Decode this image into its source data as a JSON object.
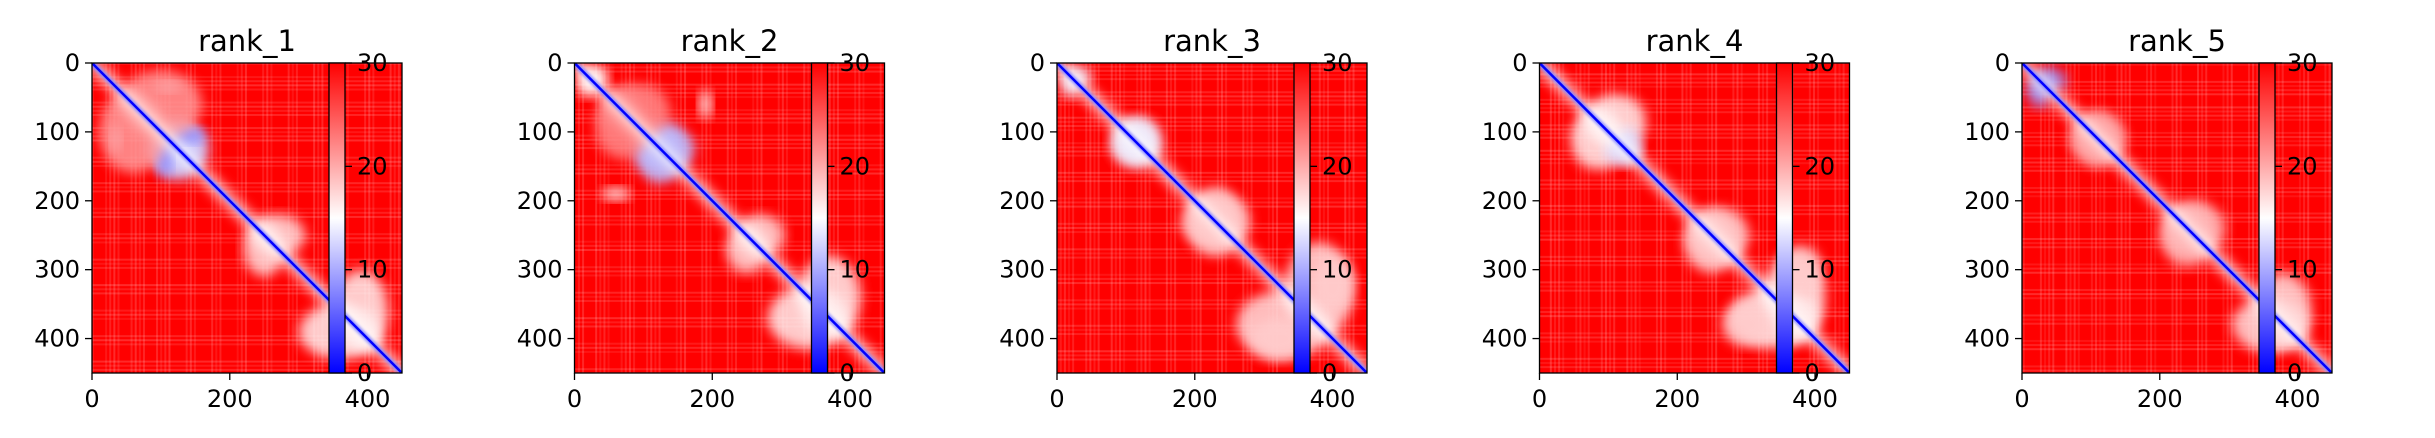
{
  "chart_data": [
    {
      "type": "heatmap",
      "title": "rank_1",
      "x_ticks": [
        "0",
        "200",
        "400"
      ],
      "y_ticks": [
        "0",
        "100",
        "200",
        "300",
        "400"
      ],
      "colorbar_ticks": [
        "0",
        "10",
        "20",
        "30"
      ],
      "xlim": [
        0,
        450
      ],
      "ylim": [
        450,
        0
      ],
      "clim": [
        0,
        30
      ],
      "colormap": [
        "#0000ff",
        "#ffffff",
        "#ff0000"
      ],
      "blobs": [
        {
          "x": 125,
          "y": 125,
          "rx": 45,
          "ry": 35,
          "value": 12
        },
        {
          "x": 140,
          "y": 105,
          "rx": 25,
          "ry": 12,
          "value": 8
        },
        {
          "x": 35,
          "y": 110,
          "rx": 8,
          "ry": 20,
          "value": 14
        },
        {
          "x": 270,
          "y": 250,
          "rx": 40,
          "ry": 30,
          "value": 17
        },
        {
          "x": 360,
          "y": 390,
          "rx": 60,
          "ry": 40,
          "value": 16
        },
        {
          "x": 100,
          "y": 60,
          "rx": 60,
          "ry": 50,
          "value": 21
        }
      ]
    },
    {
      "type": "heatmap",
      "title": "rank_2",
      "x_ticks": [
        "0",
        "200",
        "400"
      ],
      "y_ticks": [
        "0",
        "100",
        "200",
        "300",
        "400"
      ],
      "colorbar_ticks": [
        "0",
        "10",
        "20",
        "30"
      ],
      "xlim": [
        0,
        450
      ],
      "ylim": [
        450,
        0
      ],
      "clim": [
        0,
        30
      ],
      "colormap": [
        "#0000ff",
        "#ffffff",
        "#ff0000"
      ],
      "blobs": [
        {
          "x": 130,
          "y": 125,
          "rx": 45,
          "ry": 35,
          "value": 11
        },
        {
          "x": 30,
          "y": 20,
          "rx": 20,
          "ry": 15,
          "value": 15
        },
        {
          "x": 60,
          "y": 190,
          "rx": 20,
          "ry": 10,
          "value": 16
        },
        {
          "x": 270,
          "y": 250,
          "rx": 35,
          "ry": 30,
          "value": 17
        },
        {
          "x": 340,
          "y": 370,
          "rx": 60,
          "ry": 45,
          "value": 16
        },
        {
          "x": 90,
          "y": 70,
          "rx": 50,
          "ry": 40,
          "value": 22
        }
      ]
    },
    {
      "type": "heatmap",
      "title": "rank_3",
      "x_ticks": [
        "0",
        "200",
        "400"
      ],
      "y_ticks": [
        "0",
        "100",
        "200",
        "300",
        "400"
      ],
      "colorbar_ticks": [
        "0",
        "10",
        "20",
        "30"
      ],
      "xlim": [
        0,
        450
      ],
      "ylim": [
        450,
        0
      ],
      "clim": [
        0,
        30
      ],
      "colormap": [
        "#0000ff",
        "#ffffff",
        "#ff0000"
      ],
      "blobs": [
        {
          "x": 115,
          "y": 115,
          "rx": 35,
          "ry": 35,
          "value": 14
        },
        {
          "x": 30,
          "y": 20,
          "rx": 20,
          "ry": 15,
          "value": 14
        },
        {
          "x": 230,
          "y": 230,
          "rx": 50,
          "ry": 40,
          "value": 18
        },
        {
          "x": 330,
          "y": 380,
          "rx": 70,
          "ry": 50,
          "value": 17
        },
        {
          "x": 400,
          "y": 320,
          "rx": 30,
          "ry": 40,
          "value": 18
        }
      ]
    },
    {
      "type": "heatmap",
      "title": "rank_4",
      "x_ticks": [
        "0",
        "200",
        "400"
      ],
      "y_ticks": [
        "0",
        "100",
        "200",
        "300",
        "400"
      ],
      "colorbar_ticks": [
        "0",
        "10",
        "20",
        "30"
      ],
      "xlim": [
        0,
        450
      ],
      "ylim": [
        450,
        0
      ],
      "clim": [
        0,
        30
      ],
      "colormap": [
        "#0000ff",
        "#ffffff",
        "#ff0000"
      ],
      "blobs": [
        {
          "x": 85,
          "y": 110,
          "rx": 40,
          "ry": 45,
          "value": 16
        },
        {
          "x": 120,
          "y": 130,
          "rx": 25,
          "ry": 20,
          "value": 13
        },
        {
          "x": 260,
          "y": 250,
          "rx": 45,
          "ry": 40,
          "value": 18
        },
        {
          "x": 340,
          "y": 370,
          "rx": 65,
          "ry": 45,
          "value": 16
        },
        {
          "x": 380,
          "y": 300,
          "rx": 30,
          "ry": 35,
          "value": 18
        }
      ]
    },
    {
      "type": "heatmap",
      "title": "rank_5",
      "x_ticks": [
        "0",
        "200",
        "400"
      ],
      "y_ticks": [
        "0",
        "100",
        "200",
        "300",
        "400"
      ],
      "colorbar_ticks": [
        "0",
        "10",
        "20",
        "30"
      ],
      "xlim": [
        0,
        450
      ],
      "ylim": [
        450,
        0
      ],
      "clim": [
        0,
        30
      ],
      "colormap": [
        "#0000ff",
        "#ffffff",
        "#ff0000"
      ],
      "blobs": [
        {
          "x": 40,
          "y": 25,
          "rx": 25,
          "ry": 18,
          "value": 9
        },
        {
          "x": 110,
          "y": 110,
          "rx": 40,
          "ry": 35,
          "value": 20
        },
        {
          "x": 250,
          "y": 240,
          "rx": 45,
          "ry": 40,
          "value": 19
        },
        {
          "x": 360,
          "y": 380,
          "rx": 55,
          "ry": 40,
          "value": 17
        }
      ]
    }
  ]
}
